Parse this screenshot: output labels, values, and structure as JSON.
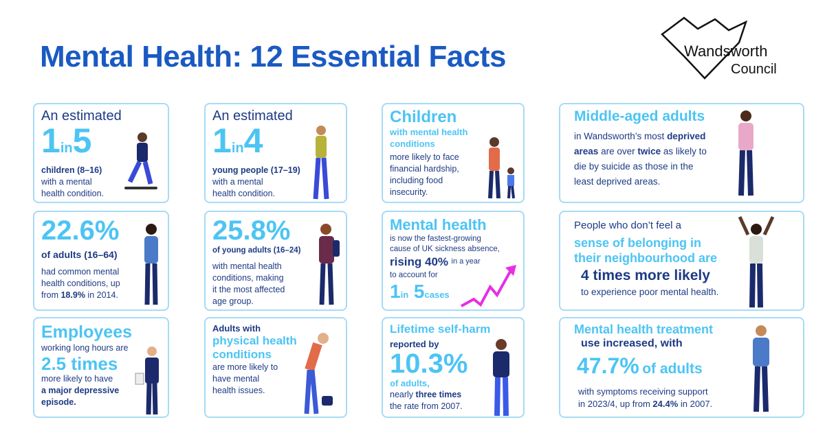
{
  "title": "Mental Health: 12 Essential Facts",
  "logo": {
    "line1": "Wandsworth",
    "line2": "Council"
  },
  "colors": {
    "title": "#1a5ac2",
    "accent": "#4cc4f4",
    "text": "#1d3a84",
    "border": "#a6dbf6",
    "arrow": "#e62ee6"
  },
  "cards": [
    {
      "a": "An estimated",
      "n1": "1",
      "in": "in",
      "n2": "5",
      "b": "children (8–16)",
      "c": "with a mental",
      "d": "health condition."
    },
    {
      "a": "An estimated",
      "n1": "1",
      "in": "in",
      "n2": "4",
      "b": "young people (17–19)",
      "c": "with a mental",
      "d": "health condition."
    },
    {
      "a": "Children",
      "b": "with mental health",
      "c": "conditions",
      "d": "more likely to face",
      "e": "financial hardship,",
      "f": "including food",
      "g": "insecurity."
    },
    {
      "a": "Middle-aged adults",
      "b": "in Wandsworth’s most",
      "b2": "deprived",
      "c": "areas",
      "c2": "are over",
      "c3": "twice",
      "c4": "as likely to",
      "d": "die by suicide as those in the",
      "e": "least deprived areas."
    },
    {
      "a": "22.6%",
      "b": "of adults (16–64)",
      "c": "had common mental",
      "d": "health conditions, up",
      "e": "from",
      "e2": "18.9%",
      "e3": "in 2014."
    },
    {
      "a": "25.8%",
      "b": "of young adults (16–24)",
      "c": "with mental health",
      "d": "conditions, making",
      "e": "it the most affected",
      "f": "age group."
    },
    {
      "a": "Mental health",
      "b": "is now the fastest-growing",
      "c": "cause of UK sickness absence,",
      "d": "rising 40%",
      "d2": "in a year",
      "e": "to account for",
      "n1": "1",
      "in": "in",
      "n2": "5",
      "cases": "cases"
    },
    {
      "a": "People who don’t feel a",
      "b": "sense of belonging in",
      "c": "their neighbourhood are",
      "d": "4 times more likely",
      "e": "to experience poor mental health."
    },
    {
      "a": "Employees",
      "b": "working long hours are",
      "c": "2.5 times",
      "d": "more likely to have",
      "e": "a major depressive",
      "f": "episode."
    },
    {
      "a": "Adults with",
      "b": "physical health",
      "c": "conditions",
      "d": "are more likely to",
      "e": "have mental",
      "f": "health issues."
    },
    {
      "a": "Lifetime self-harm",
      "b": "reported by",
      "c": "10.3%",
      "d": "of adults,",
      "e": "nearly",
      "e2": "three times",
      "f": "the rate from 2007."
    },
    {
      "a": "Mental health treatment",
      "b": "use increased, with",
      "c": "47.7%",
      "c2": "of adults",
      "d": "with symptoms receiving support",
      "e": "in 2023/4, up from",
      "e2": "24.4%",
      "e3": "in 2007."
    }
  ]
}
